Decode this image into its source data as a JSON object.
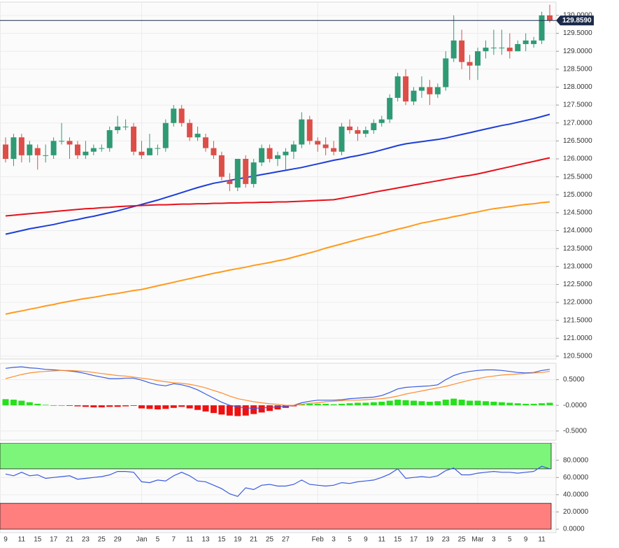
{
  "chart_data": [
    {
      "type": "candlestick",
      "open": [
        126.4,
        126.0,
        126.6,
        126.1,
        126.3,
        126.1,
        126.1,
        126.5,
        126.5,
        126.4,
        126.1,
        126.2,
        126.3,
        126.3,
        126.8,
        126.9,
        126.9,
        126.2,
        126.1,
        126.3,
        126.3,
        127.0,
        127.4,
        127.0,
        126.6,
        126.6,
        126.3,
        126.1,
        125.4,
        125.2,
        126.0,
        125.3,
        125.9,
        126.3,
        126.0,
        126.1,
        126.2,
        126.4,
        127.1,
        126.5,
        126.4,
        126.3,
        126.2,
        126.9,
        126.8,
        126.7,
        126.8,
        127.0,
        127.1,
        127.7,
        128.3,
        127.6,
        127.9,
        128.0,
        127.8,
        128.0,
        128.8,
        129.3,
        128.7,
        128.6,
        129.0,
        129.1,
        129.1,
        129.1,
        129.0,
        129.2,
        129.2,
        129.3,
        130.0
      ],
      "high": [
        126.6,
        126.7,
        126.7,
        126.5,
        126.4,
        126.4,
        126.6,
        127.0,
        126.6,
        126.5,
        126.5,
        126.4,
        126.4,
        126.9,
        127.2,
        127.1,
        127.0,
        126.5,
        126.7,
        126.4,
        127.1,
        127.5,
        127.5,
        127.1,
        126.9,
        126.7,
        126.5,
        126.2,
        125.6,
        126.0,
        126.1,
        126.0,
        126.4,
        126.4,
        126.2,
        126.3,
        126.5,
        127.3,
        127.2,
        126.6,
        126.6,
        126.5,
        127.0,
        127.1,
        126.9,
        126.9,
        127.1,
        127.2,
        127.8,
        128.4,
        128.5,
        128.0,
        128.3,
        128.2,
        128.1,
        129.0,
        130.0,
        129.6,
        128.9,
        129.1,
        129.3,
        129.6,
        129.6,
        129.5,
        129.3,
        129.5,
        129.4,
        130.1,
        130.3
      ],
      "low": [
        125.9,
        125.8,
        125.9,
        125.9,
        125.7,
        125.9,
        126.0,
        126.4,
        126.0,
        126.0,
        126.0,
        126.1,
        126.2,
        126.2,
        126.7,
        126.8,
        126.1,
        126.0,
        126.1,
        126.1,
        126.2,
        126.9,
        126.9,
        126.5,
        126.5,
        126.2,
        126.0,
        125.4,
        125.1,
        125.1,
        125.2,
        125.2,
        125.8,
        125.9,
        125.8,
        125.7,
        126.0,
        126.3,
        126.4,
        126.2,
        126.1,
        126.1,
        126.1,
        126.7,
        126.5,
        126.6,
        126.7,
        126.9,
        127.0,
        127.6,
        127.5,
        127.5,
        127.7,
        127.5,
        127.7,
        127.9,
        128.7,
        128.5,
        128.2,
        128.2,
        128.8,
        128.9,
        128.9,
        128.8,
        129.0,
        129.0,
        129.1,
        129.2,
        129.8
      ],
      "close": [
        126.0,
        126.6,
        126.1,
        126.4,
        126.1,
        126.1,
        126.5,
        126.5,
        126.4,
        126.1,
        126.2,
        126.3,
        126.3,
        126.8,
        126.9,
        126.9,
        126.2,
        126.1,
        126.3,
        126.3,
        127.0,
        127.4,
        127.0,
        126.6,
        126.7,
        126.3,
        126.1,
        125.5,
        125.3,
        126.0,
        125.3,
        125.9,
        126.3,
        126.0,
        126.1,
        126.2,
        126.4,
        127.1,
        126.5,
        126.4,
        126.3,
        126.2,
        126.9,
        126.8,
        126.7,
        126.8,
        127.0,
        127.1,
        127.7,
        128.3,
        127.6,
        127.9,
        128.0,
        127.8,
        128.0,
        128.8,
        129.3,
        128.7,
        128.6,
        129.0,
        129.1,
        129.1,
        129.1,
        129.0,
        129.2,
        129.3,
        129.3,
        130.0,
        129.859
      ],
      "up_color": "#2f9a74",
      "down_color": "#dc4f48",
      "series": [
        {
          "color": "#1d3ed8",
          "values": [
            123.9,
            123.95,
            124.0,
            124.05,
            124.09,
            124.13,
            124.17,
            124.22,
            124.27,
            124.31,
            124.36,
            124.4,
            124.45,
            124.5,
            124.55,
            124.61,
            124.67,
            124.73,
            124.79,
            124.85,
            124.92,
            124.99,
            125.06,
            125.13,
            125.2,
            125.26,
            125.32,
            125.36,
            125.4,
            125.44,
            125.48,
            125.52,
            125.56,
            125.6,
            125.64,
            125.68,
            125.72,
            125.76,
            125.81,
            125.86,
            125.91,
            125.96,
            126.0,
            126.05,
            126.09,
            126.14,
            126.19,
            126.25,
            126.31,
            126.37,
            126.42,
            126.45,
            126.48,
            126.51,
            126.54,
            126.58,
            126.63,
            126.68,
            126.73,
            126.78,
            126.83,
            126.88,
            126.93,
            126.97,
            127.02,
            127.07,
            127.12,
            127.18,
            127.24
          ]
        },
        {
          "color": "#e8101a",
          "values": [
            124.41,
            124.43,
            124.45,
            124.47,
            124.49,
            124.51,
            124.53,
            124.55,
            124.57,
            124.59,
            124.61,
            124.62,
            124.64,
            124.65,
            124.67,
            124.68,
            124.69,
            124.7,
            124.71,
            124.72,
            124.72,
            124.73,
            124.74,
            124.74,
            124.75,
            124.75,
            124.76,
            124.76,
            124.77,
            124.77,
            124.78,
            124.78,
            124.79,
            124.79,
            124.8,
            124.8,
            124.81,
            124.82,
            124.83,
            124.84,
            124.85,
            124.86,
            124.9,
            124.94,
            124.98,
            125.02,
            125.07,
            125.11,
            125.15,
            125.19,
            125.23,
            125.27,
            125.31,
            125.35,
            125.39,
            125.43,
            125.47,
            125.51,
            125.54,
            125.58,
            125.63,
            125.68,
            125.73,
            125.78,
            125.83,
            125.88,
            125.93,
            125.98,
            126.03
          ]
        },
        {
          "color": "#ff9a1c",
          "values": [
            121.67,
            121.72,
            121.76,
            121.81,
            121.85,
            121.9,
            121.94,
            121.99,
            122.03,
            122.07,
            122.11,
            122.14,
            122.18,
            122.22,
            122.25,
            122.29,
            122.33,
            122.36,
            122.41,
            122.46,
            122.51,
            122.56,
            122.61,
            122.66,
            122.71,
            122.76,
            122.81,
            122.85,
            122.9,
            122.94,
            122.98,
            123.03,
            123.07,
            123.11,
            123.16,
            123.2,
            123.26,
            123.32,
            123.38,
            123.44,
            123.51,
            123.57,
            123.63,
            123.69,
            123.75,
            123.81,
            123.86,
            123.92,
            123.98,
            124.04,
            124.09,
            124.15,
            124.21,
            124.25,
            124.3,
            124.34,
            124.39,
            124.43,
            124.48,
            124.52,
            124.57,
            124.61,
            124.64,
            124.67,
            124.7,
            124.73,
            124.75,
            124.78,
            124.8
          ]
        }
      ],
      "last_price": {
        "value": 129.859,
        "label": "129.8590",
        "color": "#1b2a4a"
      },
      "ylim": [
        120.42,
        130.37
      ],
      "yticks": [
        {
          "value": 120.5,
          "label": "120.5000"
        },
        {
          "value": 121,
          "label": "121.0000"
        },
        {
          "value": 121.5,
          "label": "121.5000"
        },
        {
          "value": 122,
          "label": "122.0000"
        },
        {
          "value": 122.5,
          "label": "122.5000"
        },
        {
          "value": 123,
          "label": "123.0000"
        },
        {
          "value": 123.5,
          "label": "123.5000"
        },
        {
          "value": 124,
          "label": "124.0000"
        },
        {
          "value": 124.5,
          "label": "124.5000"
        },
        {
          "value": 125,
          "label": "125.0000"
        },
        {
          "value": 125.5,
          "label": "125.5000"
        },
        {
          "value": 126,
          "label": "126.0000"
        },
        {
          "value": 126.5,
          "label": "126.5000"
        },
        {
          "value": 127,
          "label": "127.0000"
        },
        {
          "value": 127.5,
          "label": "127.5000"
        },
        {
          "value": 128,
          "label": "128.0000"
        },
        {
          "value": 128.5,
          "label": "128.5000"
        },
        {
          "value": 129,
          "label": "129.0000"
        },
        {
          "value": 129.5,
          "label": "129.5000"
        },
        {
          "value": 130,
          "label": "130.0000"
        }
      ],
      "grid": true
    },
    {
      "type": "macd",
      "histogram": [
        0.12,
        0.11,
        0.09,
        0.06,
        0.03,
        0.01,
        0.0,
        0.0,
        -0.01,
        -0.02,
        -0.03,
        -0.04,
        -0.04,
        -0.03,
        -0.03,
        -0.02,
        -0.01,
        -0.06,
        -0.07,
        -0.08,
        -0.07,
        -0.05,
        -0.03,
        -0.06,
        -0.09,
        -0.12,
        -0.15,
        -0.18,
        -0.2,
        -0.21,
        -0.2,
        -0.17,
        -0.14,
        -0.11,
        -0.08,
        -0.05,
        -0.02,
        0.02,
        0.03,
        0.03,
        0.03,
        0.02,
        0.03,
        0.04,
        0.05,
        0.05,
        0.06,
        0.07,
        0.09,
        0.11,
        0.1,
        0.09,
        0.08,
        0.07,
        0.08,
        0.11,
        0.13,
        0.11,
        0.09,
        0.09,
        0.08,
        0.07,
        0.06,
        0.05,
        0.04,
        0.03,
        0.03,
        0.04,
        0.05
      ],
      "up_color": "#27e01c",
      "down_color": "#ee1111",
      "series": [
        {
          "color": "#3a5be0",
          "values": [
            0.72,
            0.74,
            0.75,
            0.73,
            0.72,
            0.7,
            0.69,
            0.68,
            0.67,
            0.65,
            0.62,
            0.58,
            0.55,
            0.52,
            0.52,
            0.53,
            0.53,
            0.49,
            0.44,
            0.4,
            0.38,
            0.42,
            0.4,
            0.36,
            0.3,
            0.22,
            0.14,
            0.06,
            0.0,
            -0.03,
            -0.05,
            -0.06,
            -0.05,
            -0.04,
            -0.03,
            -0.02,
            0.0,
            0.05,
            0.08,
            0.1,
            0.1,
            0.1,
            0.11,
            0.13,
            0.14,
            0.15,
            0.16,
            0.19,
            0.25,
            0.32,
            0.35,
            0.36,
            0.37,
            0.38,
            0.4,
            0.5,
            0.58,
            0.63,
            0.66,
            0.68,
            0.69,
            0.69,
            0.68,
            0.66,
            0.64,
            0.63,
            0.64,
            0.68,
            0.7
          ]
        },
        {
          "color": "#ff8c30",
          "values": [
            0.52,
            0.56,
            0.6,
            0.63,
            0.65,
            0.66,
            0.67,
            0.68,
            0.68,
            0.67,
            0.66,
            0.64,
            0.62,
            0.6,
            0.58,
            0.57,
            0.55,
            0.53,
            0.51,
            0.48,
            0.46,
            0.44,
            0.43,
            0.41,
            0.38,
            0.34,
            0.29,
            0.24,
            0.18,
            0.13,
            0.1,
            0.07,
            0.05,
            0.03,
            0.02,
            0.0,
            0.0,
            0.02,
            0.04,
            0.05,
            0.07,
            0.08,
            0.09,
            0.1,
            0.1,
            0.11,
            0.12,
            0.13,
            0.15,
            0.18,
            0.22,
            0.25,
            0.28,
            0.31,
            0.34,
            0.37,
            0.41,
            0.45,
            0.49,
            0.52,
            0.55,
            0.57,
            0.59,
            0.6,
            0.61,
            0.62,
            0.63,
            0.64,
            0.66
          ]
        }
      ],
      "ylim": [
        -0.68,
        0.82
      ],
      "yticks": [
        {
          "value": 0.5,
          "label": "0.5000"
        },
        {
          "value": 0,
          "label": "-0.0000"
        },
        {
          "value": -0.5,
          "label": "-0.5000"
        }
      ]
    },
    {
      "type": "rsi",
      "categories": [
        "9",
        null,
        "11",
        null,
        "15",
        null,
        "17",
        null,
        "21",
        null,
        "23",
        null,
        "25",
        null,
        "29",
        null,
        null,
        "Jan",
        null,
        "5",
        null,
        "7",
        null,
        "11",
        null,
        "13",
        null,
        "15",
        null,
        "19",
        null,
        "21",
        null,
        "25",
        null,
        "27",
        null,
        null,
        null,
        "Feb",
        null,
        "3",
        null,
        "5",
        null,
        "9",
        null,
        "11",
        null,
        "15",
        null,
        "17",
        null,
        "19",
        null,
        "23",
        null,
        "25",
        null,
        "Mar",
        null,
        "3",
        null,
        "5",
        null,
        "9",
        null,
        "11",
        null
      ],
      "series": [
        {
          "color": "#3a5be0",
          "values": [
            64,
            62,
            66,
            62,
            63,
            59,
            60,
            61,
            62,
            58,
            59,
            60,
            61,
            63,
            67,
            67,
            66,
            55,
            54,
            57,
            56,
            62,
            66,
            62,
            56,
            55,
            51,
            47,
            41,
            38,
            48,
            46,
            51,
            52,
            50,
            50,
            52,
            57,
            52,
            51,
            50,
            51,
            54,
            53,
            55,
            56,
            57,
            60,
            64,
            70,
            59,
            60,
            61,
            60,
            62,
            68,
            71,
            63,
            63,
            65,
            66,
            67,
            66,
            66,
            65,
            66,
            67,
            73,
            70
          ]
        }
      ],
      "bands": [
        {
          "from": 70,
          "to": 100,
          "color": "#7df57a"
        },
        {
          "from": 0,
          "to": 30,
          "color": "#ff7f7f"
        }
      ],
      "ylim": [
        -4,
        100
      ],
      "yticks": [
        {
          "value": 0,
          "label": "0.0000"
        },
        {
          "value": 20,
          "label": "20.0000"
        },
        {
          "value": 40,
          "label": "40.0000"
        },
        {
          "value": 60,
          "label": "60.0000"
        },
        {
          "value": 80,
          "label": "80.0000"
        }
      ]
    }
  ]
}
